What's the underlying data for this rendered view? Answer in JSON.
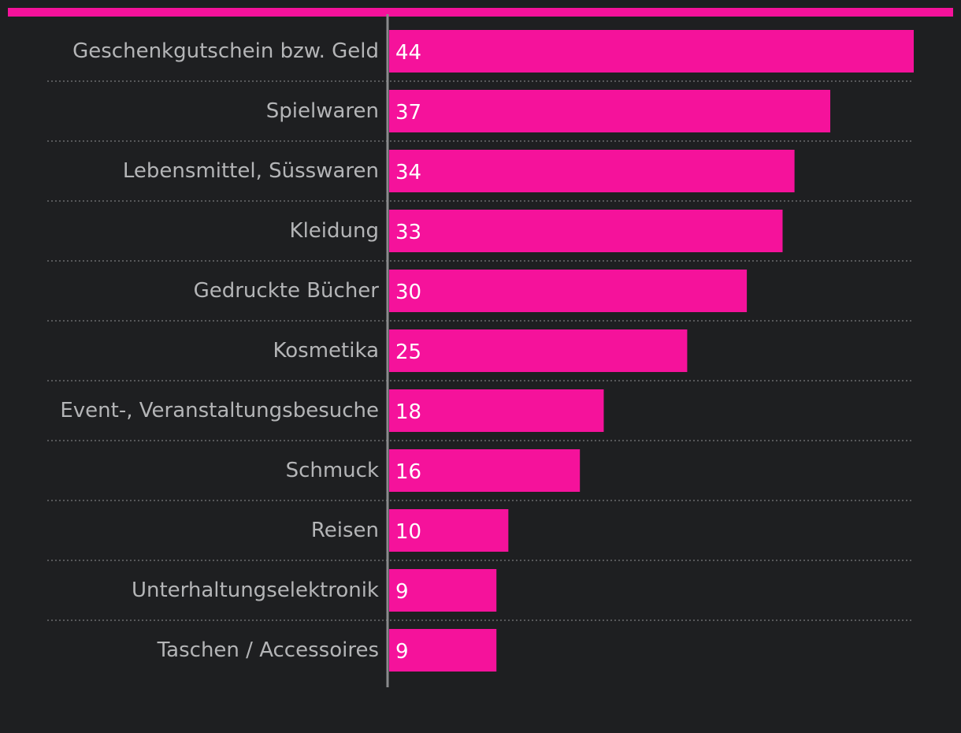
{
  "colors": {
    "background": "#1e1f21",
    "accent": "#f5129b",
    "bar": "#f5129b",
    "label": "#b4b5b7",
    "value_label": "#ffffff",
    "axis": "#8a8b8d",
    "gridline": "#6a6b6d"
  },
  "chart_data": {
    "type": "bar",
    "orientation": "horizontal",
    "title": "",
    "xlabel": "",
    "ylabel": "",
    "xlim": [
      0,
      44
    ],
    "grid": false,
    "categories": [
      "Geschenkgutschein bzw. Geld",
      "Spielwaren",
      "Lebensmittel, Süsswaren",
      "Kleidung",
      "Gedruckte Bücher",
      "Kosmetika",
      "Event-, Veranstaltungsbesuche",
      "Schmuck",
      "Reisen",
      "Unterhaltungselektronik",
      "Taschen / Accessoires"
    ],
    "values": [
      44,
      37,
      34,
      33,
      30,
      25,
      18,
      16,
      10,
      9,
      9
    ],
    "value_labels": [
      "44",
      "37",
      "34",
      "33",
      "30",
      "25",
      "18",
      "16",
      "10",
      "9",
      "9"
    ]
  }
}
